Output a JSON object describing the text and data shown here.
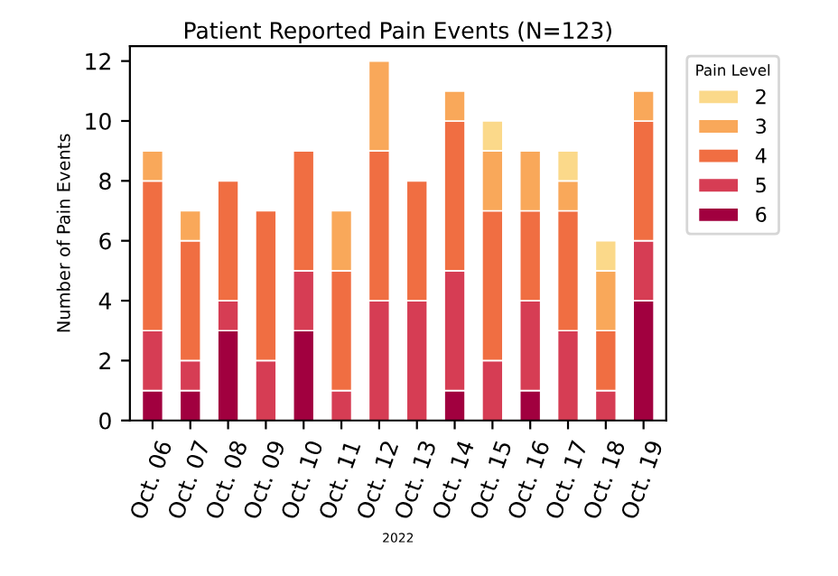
{
  "chart_data": {
    "type": "bar",
    "stacked": true,
    "title": "Patient Reported Pain Events (N=123)",
    "xlabel": "2022",
    "ylabel": "Number of Pain Events",
    "legend_title": "Pain Level",
    "legend": "right",
    "categories": [
      "Oct. 06",
      "Oct. 07",
      "Oct. 08",
      "Oct. 09",
      "Oct. 10",
      "Oct. 11",
      "Oct. 12",
      "Oct. 13",
      "Oct. 14",
      "Oct. 15",
      "Oct. 16",
      "Oct. 17",
      "Oct. 18",
      "Oct. 19"
    ],
    "ylim": [
      0,
      12.5
    ],
    "yticks": [
      0,
      2,
      4,
      6,
      8,
      10,
      12
    ],
    "grid": false,
    "series": [
      {
        "name": "6",
        "color": "#a1003f",
        "values": [
          1,
          1,
          3,
          null,
          3,
          null,
          null,
          null,
          1,
          null,
          1,
          null,
          null,
          4
        ]
      },
      {
        "name": "5",
        "color": "#d63d54",
        "values": [
          2,
          1,
          1,
          2,
          2,
          1,
          4,
          4,
          4,
          2,
          3,
          3,
          1,
          2
        ]
      },
      {
        "name": "4",
        "color": "#f06e42",
        "values": [
          5,
          4,
          4,
          5,
          4,
          4,
          5,
          4,
          5,
          5,
          3,
          4,
          2,
          4
        ]
      },
      {
        "name": "3",
        "color": "#f9a85a",
        "values": [
          1,
          1,
          null,
          null,
          null,
          2,
          3,
          null,
          1,
          2,
          2,
          1,
          2,
          1
        ]
      },
      {
        "name": "2",
        "color": "#fbd98a",
        "values": [
          null,
          null,
          null,
          null,
          null,
          null,
          null,
          null,
          null,
          1,
          null,
          1,
          1,
          null
        ]
      }
    ]
  }
}
